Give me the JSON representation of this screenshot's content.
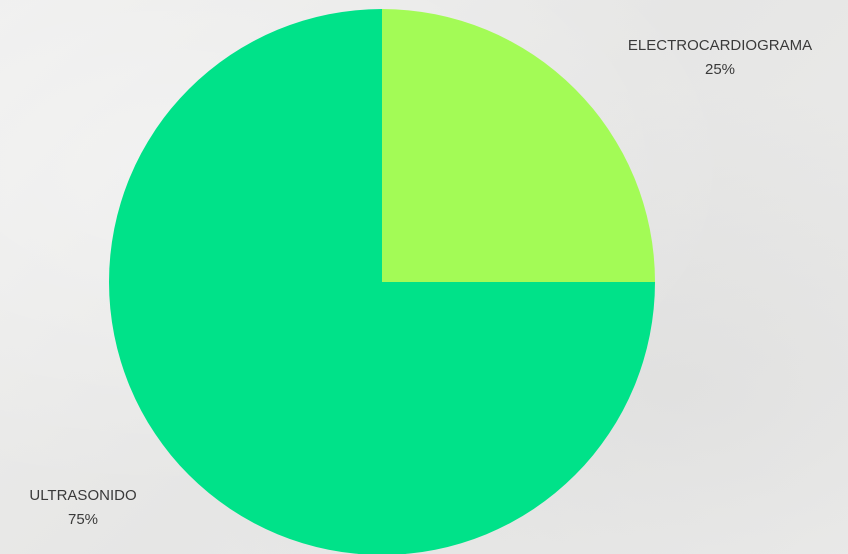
{
  "chart_data": {
    "type": "pie",
    "slices": [
      {
        "label": "ELECTROCARDIOGRAMA",
        "value": 25,
        "display": "25%",
        "color": "#a3fb56"
      },
      {
        "label": "ULTRASONIDO",
        "value": 75,
        "display": "75%",
        "color": "#00e289"
      }
    ]
  }
}
